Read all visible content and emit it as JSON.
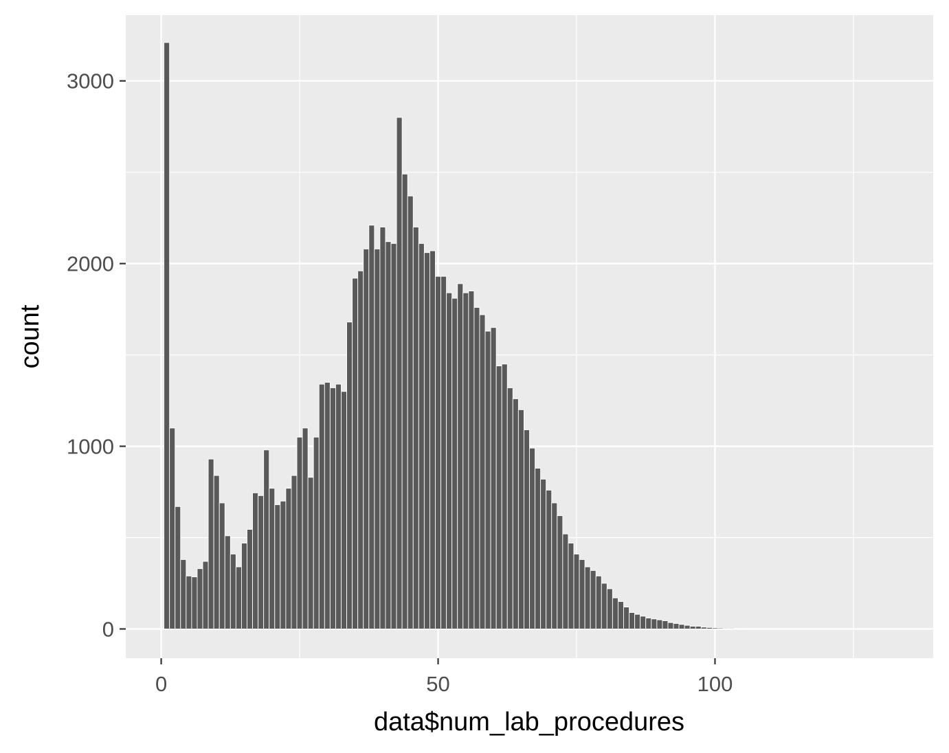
{
  "chart_data": {
    "type": "bar",
    "title": "",
    "xlabel": "data$num_lab_procedures",
    "ylabel": "count",
    "xlim": [
      -6.4,
      139.4
    ],
    "ylim": [
      -160,
      3360
    ],
    "x_ticks": [
      0,
      50,
      100
    ],
    "x_tick_labels": [
      "0",
      "50",
      "100"
    ],
    "y_ticks": [
      0,
      1000,
      2000,
      3000
    ],
    "y_tick_labels": [
      "0",
      "1000",
      "2000",
      "3000"
    ],
    "x_minor": [
      25,
      75,
      125
    ],
    "y_minor": [
      500,
      1500,
      2500
    ],
    "binwidth": 1,
    "colors": {
      "panel": "#ebebeb",
      "grid": "#ffffff",
      "bar": "#595959",
      "bar_outline": "#ffffff",
      "tick": "#333333"
    },
    "series": [
      {
        "name": "count",
        "x": [
          1,
          2,
          3,
          4,
          5,
          6,
          7,
          8,
          9,
          10,
          11,
          12,
          13,
          14,
          15,
          16,
          17,
          18,
          19,
          20,
          21,
          22,
          23,
          24,
          25,
          26,
          27,
          28,
          29,
          30,
          31,
          32,
          33,
          34,
          35,
          36,
          37,
          38,
          39,
          40,
          41,
          42,
          43,
          44,
          45,
          46,
          47,
          48,
          49,
          50,
          51,
          52,
          53,
          54,
          55,
          56,
          57,
          58,
          59,
          60,
          61,
          62,
          63,
          64,
          65,
          66,
          67,
          68,
          69,
          70,
          71,
          72,
          73,
          74,
          75,
          76,
          77,
          78,
          79,
          80,
          81,
          82,
          83,
          84,
          85,
          86,
          87,
          88,
          89,
          90,
          91,
          92,
          93,
          94,
          95,
          96,
          97,
          98,
          99,
          100,
          101,
          102,
          103,
          104,
          105,
          106,
          107,
          108,
          109,
          110,
          111,
          112,
          113,
          114
        ],
        "values": [
          3210,
          1100,
          670,
          380,
          290,
          285,
          330,
          370,
          930,
          840,
          690,
          510,
          410,
          340,
          470,
          545,
          745,
          730,
          980,
          770,
          680,
          700,
          770,
          840,
          1050,
          1100,
          830,
          1050,
          1340,
          1350,
          1320,
          1340,
          1300,
          1680,
          1920,
          1960,
          2080,
          2210,
          2080,
          2200,
          2120,
          2110,
          2800,
          2490,
          2370,
          2200,
          2110,
          2060,
          2070,
          1930,
          1930,
          1840,
          1810,
          1890,
          1840,
          1850,
          1760,
          1720,
          1630,
          1650,
          1440,
          1450,
          1320,
          1260,
          1200,
          1090,
          990,
          880,
          820,
          760,
          690,
          620,
          520,
          470,
          410,
          380,
          340,
          320,
          290,
          250,
          220,
          170,
          150,
          120,
          90,
          80,
          70,
          60,
          55,
          50,
          45,
          35,
          30,
          25,
          20,
          15,
          15,
          10,
          8,
          6,
          5,
          4,
          4,
          3,
          3,
          2,
          2,
          2,
          2,
          1,
          1,
          1,
          1,
          1
        ]
      }
    ]
  }
}
